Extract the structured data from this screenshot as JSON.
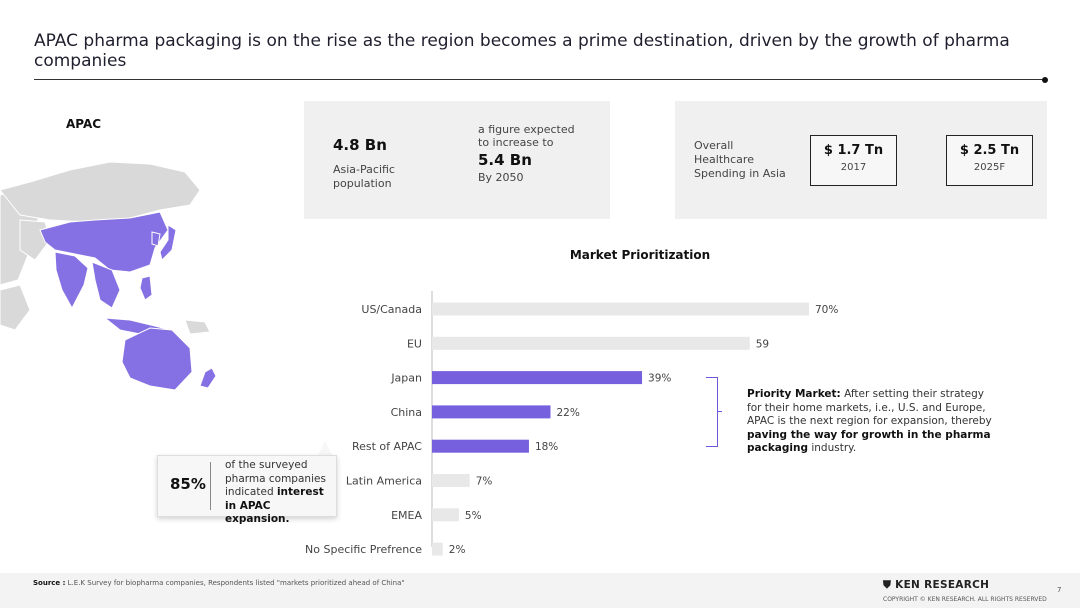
{
  "header": {
    "title": "APAC pharma packaging is on the rise as the region becomes a prime destination, driven by the growth of pharma companies"
  },
  "map": {
    "region_label": "APAC",
    "highlight_color": "#8571e3",
    "base_color": "#d9d9d9"
  },
  "population_card": {
    "value": "4.8 Bn",
    "label": "Asia-Pacific population",
    "note": "a figure expected to increase to",
    "future_value": "5.4 Bn",
    "future_year": "By 2050"
  },
  "healthcare_card": {
    "label": "Overall Healthcare Spending in Asia",
    "box1": {
      "value": "$ 1.7 Tn",
      "year": "2017"
    },
    "box2": {
      "value": "$ 2.5 Tn",
      "year": "2025F"
    }
  },
  "chart_data": {
    "type": "bar",
    "orientation": "horizontal",
    "title": "Market Prioritization",
    "categories": [
      "US/Canada",
      "EU",
      "Japan",
      "China",
      "Rest of APAC",
      "Latin America",
      "EMEA",
      "No Specific Prefrence"
    ],
    "values": [
      70,
      59,
      39,
      22,
      18,
      7,
      5,
      2
    ],
    "value_labels": [
      "70%",
      "59",
      "39%",
      "22%",
      "18%",
      "7%",
      "5%",
      "2%"
    ],
    "highlighted": [
      false,
      false,
      true,
      true,
      true,
      false,
      false,
      false
    ],
    "colors": {
      "highlight": "#7660de",
      "base": "#e8e8e8"
    },
    "xlim": [
      0,
      70
    ]
  },
  "priority_note": {
    "bold_lead": "Priority Market:",
    "text1": " After setting their strategy for their home markets, i.e., U.S. and Europe, APAC is the next region for expansion, thereby ",
    "bold_tail": "paving the way for growth in the pharma packaging",
    "text2": " industry."
  },
  "callout": {
    "percent": "85%",
    "text1": "of the surveyed pharma companies indicated ",
    "bold": "interest in APAC expansion."
  },
  "footer": {
    "source_label": "Source :",
    "source_text": "L.E.K Survey for biopharma companies, Respondents listed \"markets prioritized ahead of China\"",
    "brand": "KEN RESEARCH",
    "copyright": "COPYRIGHT © KEN RESEARCH. ALL RIGHTS RESERVED",
    "page_number": "7"
  }
}
